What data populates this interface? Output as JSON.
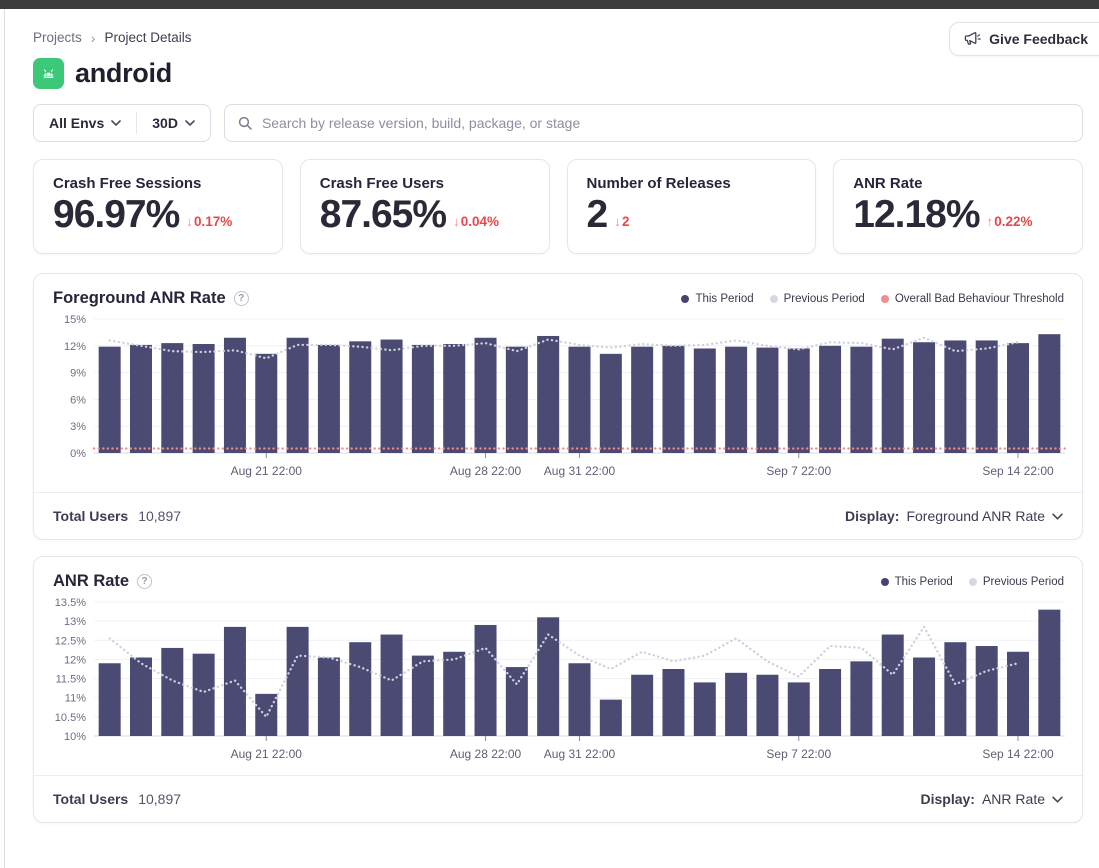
{
  "breadcrumb": {
    "root": "Projects",
    "current": "Project Details"
  },
  "feedback": {
    "label": "Give Feedback"
  },
  "project": {
    "name": "android"
  },
  "filters": {
    "env_label": "All Envs",
    "range_label": "30D",
    "search_placeholder": "Search by release version, build, package, or stage"
  },
  "stats": [
    {
      "label": "Crash Free Sessions",
      "value": "96.97%",
      "arrow": "↓",
      "delta": "0.17%"
    },
    {
      "label": "Crash Free Users",
      "value": "87.65%",
      "arrow": "↓",
      "delta": "0.04%"
    },
    {
      "label": "Number of Releases",
      "value": "2",
      "arrow": "↓",
      "delta": "2"
    },
    {
      "label": "ANR Rate",
      "value": "12.18%",
      "arrow": "↑",
      "delta": "0.22%"
    }
  ],
  "panels": [
    {
      "title": "Foreground ANR Rate",
      "legend": [
        {
          "label": "This Period",
          "color": "#45446E"
        },
        {
          "label": "Previous Period",
          "color": "#D7D8E3"
        },
        {
          "label": "Overall Bad Behaviour Threshold",
          "color": "#EF8E8E"
        }
      ],
      "footer": {
        "users_label": "Total Users",
        "users_value": "10,897",
        "display_label": "Display:",
        "display_value": "Foreground ANR Rate"
      }
    },
    {
      "title": "ANR Rate",
      "legend": [
        {
          "label": "This Period",
          "color": "#45446E"
        },
        {
          "label": "Previous Period",
          "color": "#D7D8E3"
        }
      ],
      "footer": {
        "users_label": "Total Users",
        "users_value": "10,897",
        "display_label": "Display:",
        "display_value": "ANR Rate"
      }
    }
  ],
  "colors": {
    "bar": "#4A4A73",
    "prev_line": "#CFD0DD",
    "threshold": "#EE8B8B",
    "delta_red": "#E5484D",
    "android_green": "#3BC878",
    "topbar": "#3D3D3D"
  },
  "chart_data": [
    {
      "type": "bar",
      "title": "Foreground ANR Rate",
      "xlabel": "",
      "ylabel": "",
      "ylim": [
        0,
        15
      ],
      "yticks": [
        0,
        3,
        6,
        9,
        12,
        15
      ],
      "ytick_labels": [
        "0%",
        "3%",
        "6%",
        "9%",
        "12%",
        "15%"
      ],
      "x_tick_positions": [
        5,
        12,
        15,
        22,
        29
      ],
      "x_tick_labels": [
        "Aug 21 22:00",
        "Aug 28 22:00",
        "Aug 31 22:00",
        "Sep 7 22:00",
        "Sep 14 22:00"
      ],
      "legend_position": "top-right",
      "grid": true,
      "threshold": 0.5,
      "threshold_color": "#EE8B8B",
      "series": [
        {
          "name": "This Period",
          "kind": "bar",
          "color": "#4A4A73",
          "values": [
            11.9,
            12.1,
            12.3,
            12.2,
            12.9,
            11.1,
            12.9,
            12.1,
            12.5,
            12.7,
            12.1,
            12.2,
            12.9,
            11.9,
            13.1,
            11.9,
            11.1,
            11.9,
            12.0,
            11.7,
            11.9,
            11.8,
            11.7,
            12.0,
            11.9,
            12.8,
            12.4,
            12.6,
            12.6,
            12.3,
            13.3
          ]
        },
        {
          "name": "Previous Period",
          "kind": "dotted-line",
          "color": "#CFD0DD",
          "values": [
            12.6,
            12.0,
            11.4,
            11.3,
            11.5,
            10.6,
            12.1,
            12.1,
            11.9,
            11.5,
            12.0,
            12.0,
            12.3,
            11.4,
            12.7,
            12.1,
            11.8,
            12.2,
            12.0,
            12.1,
            12.6,
            12.0,
            11.6,
            12.4,
            12.3,
            11.6,
            12.9,
            11.4,
            11.7,
            12.4
          ]
        }
      ]
    },
    {
      "type": "bar",
      "title": "ANR Rate",
      "xlabel": "",
      "ylabel": "",
      "ylim": [
        10,
        13.5
      ],
      "yticks": [
        10,
        10.5,
        11,
        11.5,
        12,
        12.5,
        13,
        13.5
      ],
      "ytick_labels": [
        "10%",
        "10.5%",
        "11%",
        "11.5%",
        "12%",
        "12.5%",
        "13%",
        "13.5%"
      ],
      "x_tick_positions": [
        5,
        12,
        15,
        22,
        29
      ],
      "x_tick_labels": [
        "Aug 21 22:00",
        "Aug 28 22:00",
        "Aug 31 22:00",
        "Sep 7 22:00",
        "Sep 14 22:00"
      ],
      "legend_position": "top-right",
      "grid": true,
      "series": [
        {
          "name": "This Period",
          "kind": "bar",
          "color": "#4A4A73",
          "values": [
            11.9,
            12.05,
            12.3,
            12.15,
            12.85,
            11.1,
            12.85,
            12.05,
            12.45,
            12.65,
            12.1,
            12.2,
            12.9,
            11.8,
            13.1,
            11.9,
            10.95,
            11.6,
            11.75,
            11.4,
            11.65,
            11.6,
            11.4,
            11.75,
            11.95,
            12.65,
            12.05,
            12.45,
            12.35,
            12.2,
            13.3
          ]
        },
        {
          "name": "Previous Period",
          "kind": "dotted-line",
          "color": "#CFD0DD",
          "values": [
            12.55,
            11.9,
            11.45,
            11.15,
            11.45,
            10.5,
            12.1,
            12.05,
            11.8,
            11.45,
            11.95,
            12.0,
            12.3,
            11.35,
            12.65,
            12.1,
            11.75,
            12.2,
            11.95,
            12.1,
            12.55,
            11.95,
            11.55,
            12.35,
            12.3,
            11.6,
            12.85,
            11.35,
            11.7,
            11.9
          ]
        }
      ]
    }
  ]
}
